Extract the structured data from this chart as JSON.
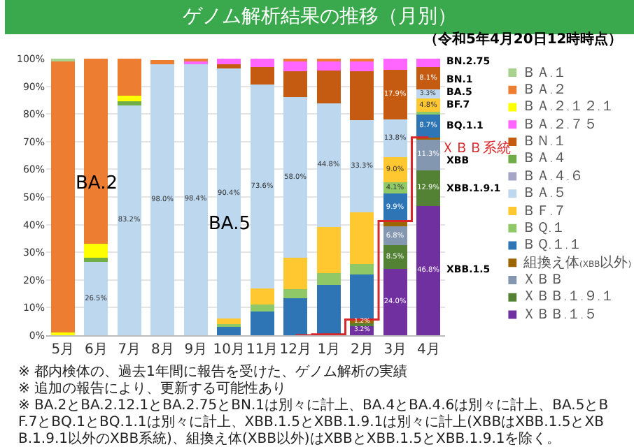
{
  "chart_data": {
    "type": "bar",
    "stacked": true,
    "title": "ゲノム解析結果の推移（月別）",
    "subtitle": "（令和5年4月20日12時時点）",
    "categories": [
      "5月",
      "6月",
      "7月",
      "8月",
      "9月",
      "10月",
      "11月",
      "12月",
      "1月",
      "2月",
      "3月",
      "4月"
    ],
    "ylim": [
      0,
      100
    ],
    "yticks": [
      {
        "value": 0,
        "label": "0%"
      },
      {
        "value": 10,
        "label": "10%"
      },
      {
        "value": 20,
        "label": "20%"
      },
      {
        "value": 30,
        "label": "30%"
      },
      {
        "value": 40,
        "label": "40%"
      },
      {
        "value": 50,
        "label": "50%"
      },
      {
        "value": 60,
        "label": "60%"
      },
      {
        "value": 70,
        "label": "70%"
      },
      {
        "value": 80,
        "label": "80%"
      },
      {
        "value": 90,
        "label": "90%"
      },
      {
        "value": 100,
        "label": "100%"
      }
    ],
    "grid": "y",
    "legend": "right",
    "series": [
      {
        "name": "ＸＢＢ.１.５",
        "color": "#7030a0",
        "values": [
          null,
          null,
          null,
          null,
          null,
          null,
          null,
          null,
          0.3,
          3.2,
          24.0,
          46.8
        ],
        "value_labels": [
          null,
          null,
          null,
          null,
          null,
          null,
          null,
          null,
          null,
          "3.2%",
          "24.0%",
          "46.8%"
        ]
      },
      {
        "name": "ＸＢＢ.１.９.１",
        "color": "#548235",
        "values": [
          null,
          null,
          null,
          null,
          null,
          null,
          null,
          null,
          null,
          1.2,
          8.5,
          12.9
        ],
        "value_labels": [
          null,
          null,
          null,
          null,
          null,
          null,
          null,
          null,
          null,
          "1.2%",
          "8.5%",
          "12.9%"
        ]
      },
      {
        "name": "ＸＢＢ",
        "color": "#8497b0",
        "values": [
          null,
          null,
          null,
          null,
          null,
          null,
          null,
          null,
          null,
          null,
          6.8,
          11.3
        ],
        "value_labels": [
          null,
          null,
          null,
          null,
          null,
          null,
          null,
          null,
          null,
          null,
          "6.8%",
          "11.3%"
        ]
      },
      {
        "name": "組換え体(XBB以外)",
        "color": "#9c6500",
        "values": [
          null,
          null,
          null,
          null,
          null,
          null,
          null,
          null,
          null,
          1.3,
          2.0,
          0.5
        ]
      },
      {
        "name": "ＢＱ.１.１",
        "color": "#2e75b6",
        "values": [
          null,
          null,
          null,
          null,
          null,
          3.4,
          8.5,
          13.4,
          18.0,
          16.2,
          9.9,
          8.7
        ],
        "value_labels": [
          null,
          null,
          null,
          null,
          null,
          null,
          null,
          null,
          null,
          null,
          "9.9%",
          "8.7%"
        ]
      },
      {
        "name": "ＢＱ.１",
        "color": "#8fc866",
        "values": [
          null,
          null,
          null,
          null,
          null,
          0.6,
          2.5,
          3.2,
          4.2,
          3.8,
          4.1,
          0.5
        ],
        "value_labels": [
          null,
          null,
          null,
          null,
          null,
          null,
          null,
          null,
          null,
          null,
          "4.1%",
          null
        ]
      },
      {
        "name": "ＢＦ.７",
        "color": "#ffc830",
        "values": [
          null,
          null,
          null,
          null,
          null,
          2.0,
          6.0,
          11.5,
          16.6,
          18.8,
          9.0,
          4.8
        ],
        "value_labels": [
          null,
          null,
          null,
          null,
          null,
          null,
          null,
          null,
          null,
          null,
          "9.0%",
          "4.8%"
        ]
      },
      {
        "name": "ＢＡ.５",
        "color": "#bdd7ee",
        "values": [
          null,
          26.5,
          83.2,
          98.0,
          98.4,
          90.4,
          73.6,
          58.0,
          44.8,
          33.3,
          13.8,
          3.3
        ],
        "value_labels": [
          null,
          "26.5%",
          "83.2%",
          "98.0%",
          "98.4%",
          "90.4%",
          "73.6%",
          "58.0%",
          "44.8%",
          "33.3%",
          "13.8%",
          "3.3%"
        ]
      },
      {
        "name": "ＢＡ.４.６",
        "color": "#a5a5c8",
        "values": [
          null,
          null,
          null,
          null,
          null,
          null,
          null,
          null,
          null,
          null,
          null,
          null
        ]
      },
      {
        "name": "ＢＡ.４",
        "color": "#70ad47",
        "values": [
          null,
          1.5,
          1.5,
          null,
          null,
          null,
          null,
          null,
          null,
          null,
          null,
          null
        ]
      },
      {
        "name": "ＢＮ.１",
        "color": "#c55a11",
        "values": [
          null,
          null,
          null,
          null,
          null,
          1.5,
          6.3,
          9.4,
          11.9,
          17.7,
          17.9,
          8.1
        ],
        "value_labels": [
          null,
          null,
          null,
          null,
          null,
          null,
          null,
          null,
          null,
          null,
          "17.9%",
          "8.1%"
        ]
      },
      {
        "name": "ＢＡ.２.７５",
        "color": "#ff66ff",
        "values": [
          null,
          null,
          null,
          null,
          1.0,
          2.1,
          3.0,
          3.6,
          3.5,
          3.5,
          4.0,
          3.1
        ]
      },
      {
        "name": "ＢＡ.２.１２.１",
        "color": "#ffff00",
        "values": [
          1.0,
          5.0,
          2.0,
          null,
          null,
          null,
          null,
          null,
          null,
          null,
          null,
          null
        ]
      },
      {
        "name": "ＢＡ.２",
        "color": "#ed7d31",
        "values": [
          98.0,
          67.0,
          13.3,
          1.5,
          0.6,
          null,
          null,
          0.9,
          0.7,
          1.0,
          null,
          null
        ]
      },
      {
        "name": "ＢＡ.１",
        "color": "#a9d18e",
        "values": [
          1.0,
          null,
          null,
          null,
          null,
          null,
          null,
          null,
          null,
          null,
          null,
          null
        ]
      },
      {
        "name": "ＸＢＢ系統",
        "type": "step",
        "color": "#d9262b",
        "values": [
          null,
          null,
          null,
          null,
          null,
          null,
          null,
          0,
          0.3,
          5.7,
          41.3,
          71.5
        ]
      }
    ],
    "annotations": [
      "BA.2",
      "BA.5",
      "BN.2.75",
      "BN.1",
      "BA.5",
      "BF.7",
      "BQ.1.1",
      "XBB",
      "XBB.1.9.1",
      "XBB.1.5",
      "※ 都内検体の、過去1年間に報告を受けた、ゲノム解析の実績",
      "※ 追加の報告により、更新する可能性あり",
      "※ BA.2とBA.2.12.1とBA.2.75とBN.1は別々に計上、BA.4とBA.4.6は別々に計上、BA.5とBF.7とBQ.1とBQ.1.1は別々に計上、XBB.1.5とXBB.1.9.1は別々に計上(XBBはXBB.1.5とXBB.1.9.1以外のXBB系統)、組換え体(XBB以外)はXBBとXBB.1.5とXBB.1.9.1を除く。"
    ]
  }
}
